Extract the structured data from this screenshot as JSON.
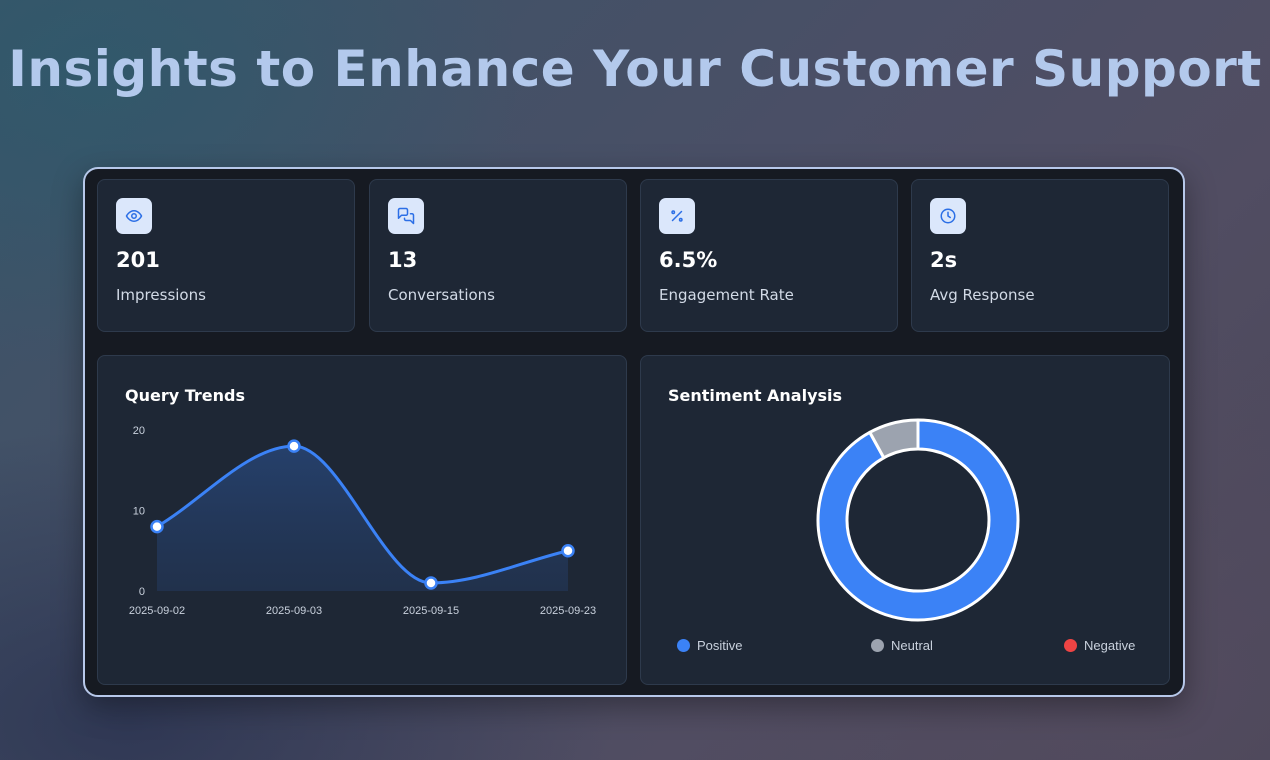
{
  "page": {
    "title": "Insights to Enhance Your Customer Support"
  },
  "stats": [
    {
      "icon": "eye-icon",
      "value": "201",
      "label": "Impressions"
    },
    {
      "icon": "chat-icon",
      "value": "13",
      "label": "Conversations"
    },
    {
      "icon": "percent-icon",
      "value": "6.5%",
      "label": "Engagement Rate"
    },
    {
      "icon": "clock-icon",
      "value": "2s",
      "label": "Avg Response"
    }
  ],
  "query_trends": {
    "title": "Query Trends"
  },
  "sentiment": {
    "title": "Sentiment Analysis"
  },
  "colors": {
    "accent": "#3b82f6",
    "neutral": "#9ca3af",
    "negative": "#ef4444"
  },
  "chart_data": [
    {
      "type": "area",
      "title": "Query Trends",
      "x": [
        "2025-09-02",
        "2025-09-03",
        "2025-09-15",
        "2025-09-23"
      ],
      "values": [
        8,
        18,
        1,
        5
      ],
      "ylim": [
        0,
        20
      ],
      "yticks": [
        "0",
        "10",
        "20"
      ],
      "xlabel": "",
      "ylabel": "",
      "line_color": "#3b82f6",
      "grid": false
    },
    {
      "type": "pie",
      "title": "Sentiment Analysis",
      "donut": true,
      "labels": [
        "Positive",
        "Neutral",
        "Negative"
      ],
      "values": [
        92,
        8,
        0
      ],
      "colors": [
        "#3b82f6",
        "#9ca3af",
        "#ef4444"
      ],
      "legend": "bottom"
    }
  ]
}
